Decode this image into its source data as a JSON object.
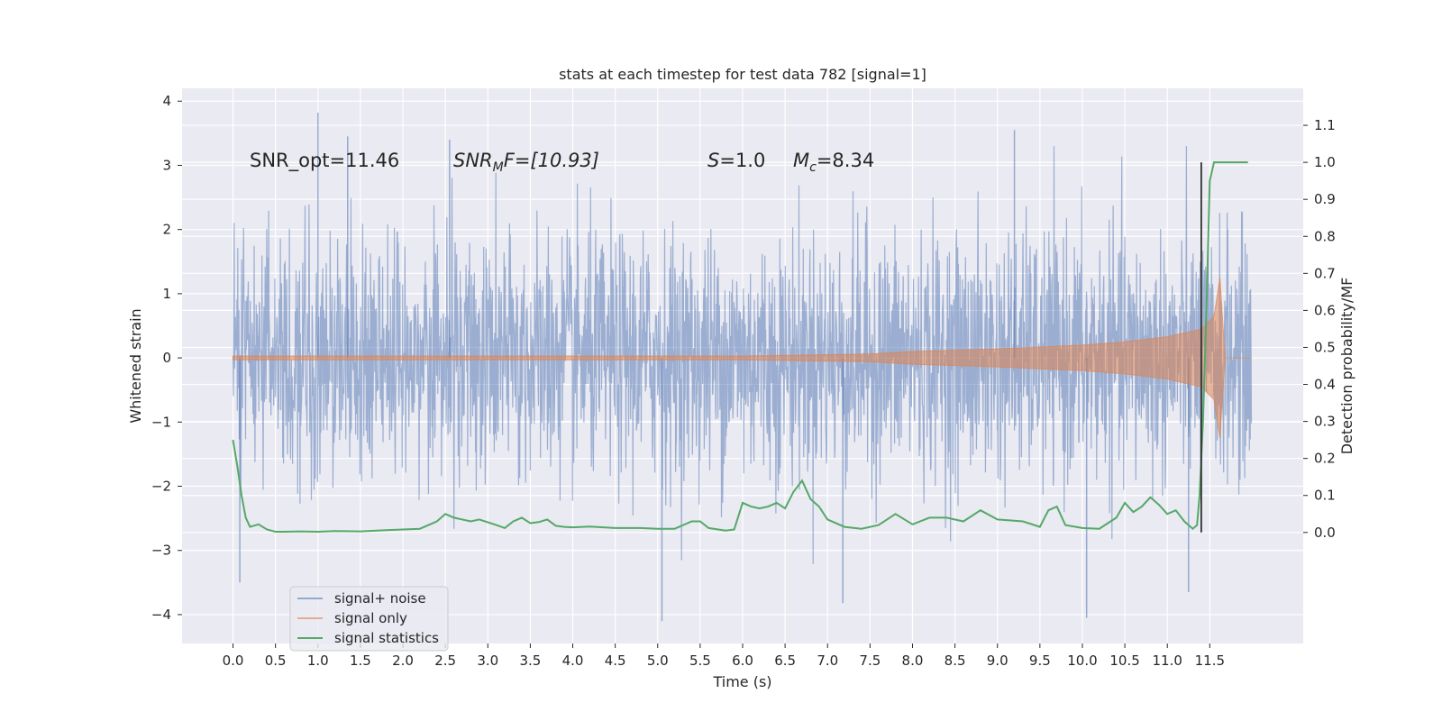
{
  "chart_data": {
    "type": "line",
    "title": "stats at each timestep for test data 782 [signal=1]",
    "xlabel": "Time (s)",
    "ylabel": "Whitened strain",
    "y2label": "Detection probability/MF",
    "xlim": [
      -0.6,
      12.6
    ],
    "ylim": [
      -4.45,
      4.2
    ],
    "y2lim": [
      -0.3,
      1.2
    ],
    "x_ticks": [
      0.0,
      0.5,
      1.0,
      1.5,
      2.0,
      2.5,
      3.0,
      3.5,
      4.0,
      4.5,
      5.0,
      5.5,
      6.0,
      6.5,
      7.0,
      7.5,
      8.0,
      8.5,
      9.0,
      9.5,
      10.0,
      10.5,
      11.0,
      11.5
    ],
    "x_tick_labels": [
      "0.0",
      "0.5",
      "1.0",
      "1.5",
      "2.0",
      "2.5",
      "3.0",
      "3.5",
      "4.0",
      "4.5",
      "5.0",
      "5.5",
      "6.0",
      "6.5",
      "7.0",
      "7.5",
      "8.0",
      "8.5",
      "9.0",
      "9.5",
      "10.0",
      "10.5",
      "11.0",
      "11.5"
    ],
    "y_ticks": [
      4,
      3,
      2,
      1,
      0,
      -1,
      -2,
      -3,
      -4
    ],
    "y_tick_labels": [
      "4",
      "3",
      "2",
      "1",
      "0",
      "−1",
      "−2",
      "−3",
      "−4"
    ],
    "y2_ticks": [
      1.1,
      1.0,
      0.9,
      0.8,
      0.7,
      0.6,
      0.5,
      0.4,
      0.3,
      0.2,
      0.1,
      0.0
    ],
    "y2_tick_labels": [
      "1.1",
      "1.0",
      "0.9",
      "0.8",
      "0.7",
      "0.6",
      "0.5",
      "0.4",
      "0.3",
      "0.2",
      "0.1",
      "0.0"
    ],
    "grid": true,
    "legend_position": "lower-left",
    "annotations": {
      "snr_opt": "SNR_opt=11.46",
      "snr_mf_sym": "SNR",
      "snr_mf_sub": "M",
      "snr_mf_tail": "F=[10.93]",
      "s_sym": "S",
      "s_val": "=1.0",
      "mc_sym": "M",
      "mc_sub": "c",
      "mc_val": "=8.34"
    },
    "merger_marker": {
      "x": 11.4,
      "y2_min": 0.0,
      "y2_max": 1.0
    },
    "series": [
      {
        "name": "signal+ noise",
        "color": "#4c72b0",
        "description_values": {
          "x_range": [
            0.0,
            11.99
          ],
          "peak_min": -4.1,
          "peak_max": 3.82,
          "notable_spikes": [
            [
              1.0,
              3.82
            ],
            [
              5.05,
              -4.1
            ],
            [
              10.05,
              -4.05
            ],
            [
              11.25,
              -3.65
            ],
            [
              0.08,
              -3.5
            ],
            [
              7.18,
              -3.82
            ],
            [
              9.2,
              3.55
            ],
            [
              1.35,
              3.45
            ],
            [
              2.55,
              3.4
            ]
          ]
        }
      },
      {
        "name": "signal only",
        "color": "#dd8452",
        "envelope": {
          "x": [
            0.0,
            6.0,
            7.5,
            8.0,
            9.0,
            10.0,
            10.5,
            11.0,
            11.4,
            11.55,
            11.62,
            11.68,
            11.99
          ],
          "amp": [
            0.03,
            0.03,
            0.06,
            0.1,
            0.14,
            0.2,
            0.25,
            0.33,
            0.45,
            0.65,
            1.25,
            0.0,
            0.0
          ]
        }
      },
      {
        "name": "signal statistics",
        "color": "#55a868",
        "x": [
          0.0,
          0.05,
          0.1,
          0.15,
          0.2,
          0.3,
          0.4,
          0.5,
          0.6,
          0.8,
          1.0,
          1.2,
          1.5,
          1.8,
          2.0,
          2.2,
          2.4,
          2.5,
          2.6,
          2.8,
          2.9,
          3.1,
          3.2,
          3.3,
          3.4,
          3.5,
          3.6,
          3.7,
          3.8,
          3.9,
          4.0,
          4.2,
          4.5,
          4.8,
          5.0,
          5.2,
          5.4,
          5.5,
          5.6,
          5.8,
          5.9,
          6.0,
          6.1,
          6.2,
          6.3,
          6.4,
          6.5,
          6.6,
          6.7,
          6.8,
          6.9,
          7.0,
          7.2,
          7.4,
          7.6,
          7.8,
          8.0,
          8.2,
          8.4,
          8.6,
          8.8,
          9.0,
          9.3,
          9.5,
          9.6,
          9.7,
          9.8,
          10.0,
          10.2,
          10.3,
          10.4,
          10.5,
          10.6,
          10.7,
          10.8,
          10.9,
          11.0,
          11.1,
          11.2,
          11.3,
          11.35,
          11.38,
          11.42,
          11.46,
          11.5,
          11.55,
          11.6,
          11.7,
          11.8,
          11.95
        ],
        "values": [
          0.25,
          0.18,
          0.1,
          0.04,
          0.015,
          0.022,
          0.008,
          0.002,
          0.002,
          0.003,
          0.002,
          0.004,
          0.003,
          0.006,
          0.008,
          0.01,
          0.03,
          0.05,
          0.04,
          0.03,
          0.035,
          0.02,
          0.012,
          0.03,
          0.04,
          0.025,
          0.028,
          0.035,
          0.018,
          0.015,
          0.014,
          0.016,
          0.012,
          0.012,
          0.01,
          0.01,
          0.03,
          0.03,
          0.012,
          0.005,
          0.008,
          0.08,
          0.07,
          0.065,
          0.07,
          0.08,
          0.065,
          0.11,
          0.14,
          0.09,
          0.07,
          0.035,
          0.015,
          0.01,
          0.02,
          0.05,
          0.022,
          0.04,
          0.04,
          0.03,
          0.06,
          0.035,
          0.03,
          0.015,
          0.06,
          0.07,
          0.02,
          0.012,
          0.01,
          0.025,
          0.04,
          0.08,
          0.055,
          0.07,
          0.095,
          0.075,
          0.05,
          0.06,
          0.03,
          0.01,
          0.02,
          0.1,
          0.3,
          0.6,
          0.95,
          1.0,
          1.0,
          1.0,
          1.0,
          1.0
        ]
      }
    ]
  }
}
